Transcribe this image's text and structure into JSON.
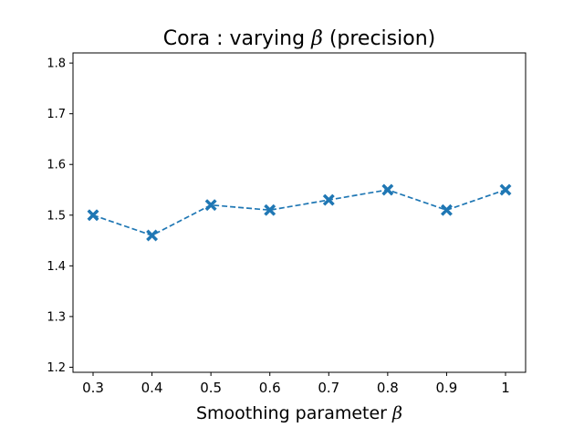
{
  "chart_data": {
    "type": "line",
    "title": "Cora : varying",
    "title_symbol": "β",
    "title_suffix": "(precision)",
    "xlabel": "Smoothing parameter",
    "xlabel_symbol": "β",
    "ylabel": "",
    "categories": [
      "0.3",
      "0.4",
      "0.5",
      "0.6",
      "0.7",
      "0.8",
      "0.9",
      "1"
    ],
    "series": [
      {
        "name": "precision",
        "values": [
          1.5,
          1.46,
          1.52,
          1.51,
          1.53,
          1.55,
          1.51,
          1.55
        ],
        "color": "#1f77b4",
        "line_style": "dashed",
        "marker": "X"
      }
    ],
    "ylim": [
      1.19,
      1.82
    ],
    "yticks": [
      1.2,
      1.3,
      1.4,
      1.5,
      1.6,
      1.7,
      1.8
    ],
    "ytick_labels": [
      "1.2",
      "1.3",
      "1.4",
      "1.5",
      "1.6",
      "1.7",
      "1.8"
    ],
    "grid": false
  }
}
